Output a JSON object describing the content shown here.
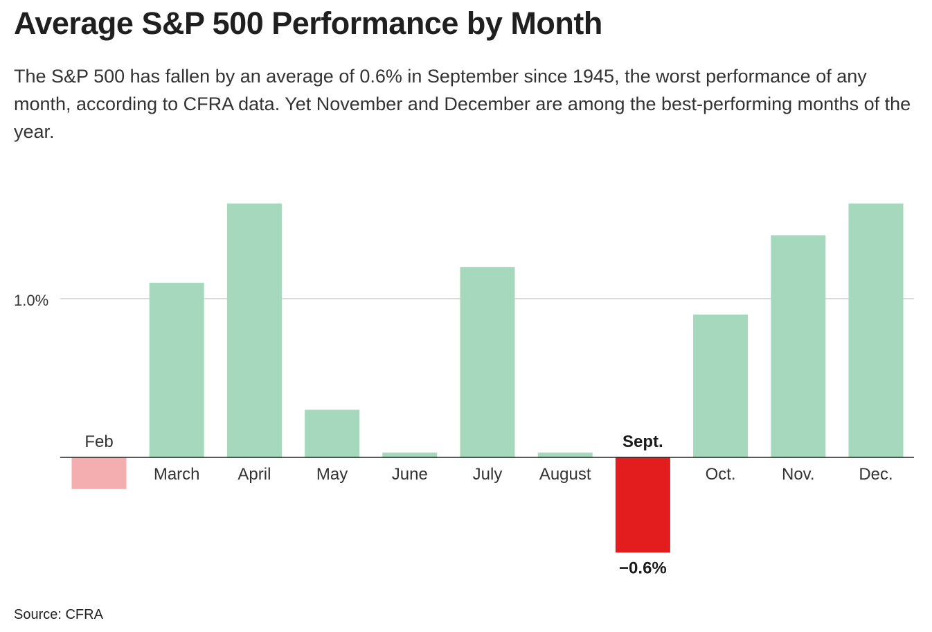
{
  "header": {
    "title": "Average S&P 500 Performance by Month",
    "subtitle": "The S&P 500 has fallen by an average of 0.6% in September since 1945, the worst performance of any month, according to CFRA data. Yet November and December are among the best-performing months of the year."
  },
  "footer": {
    "source": "Source: CFRA"
  },
  "colors": {
    "positive": "#a5d8bc",
    "negative_light": "#f4aeb0",
    "negative_highlight": "#e31d1d"
  },
  "chart_data": {
    "type": "bar",
    "title": "Average S&P 500 Performance by Month",
    "categories": [
      "Feb",
      "March",
      "April",
      "May",
      "June",
      "July",
      "August",
      "Sept.",
      "Oct.",
      "Nov.",
      "Dec."
    ],
    "values": [
      -0.2,
      1.1,
      1.6,
      0.3,
      0.03,
      1.2,
      0.03,
      -0.6,
      0.9,
      1.4,
      1.6
    ],
    "highlight": "Sept.",
    "highlight_label": "−0.6%",
    "yticks": [
      {
        "value": 1.0,
        "label": "1.0%"
      }
    ],
    "ylim": [
      -0.6,
      1.6
    ],
    "grid": true,
    "xlabel": "",
    "ylabel": ""
  }
}
